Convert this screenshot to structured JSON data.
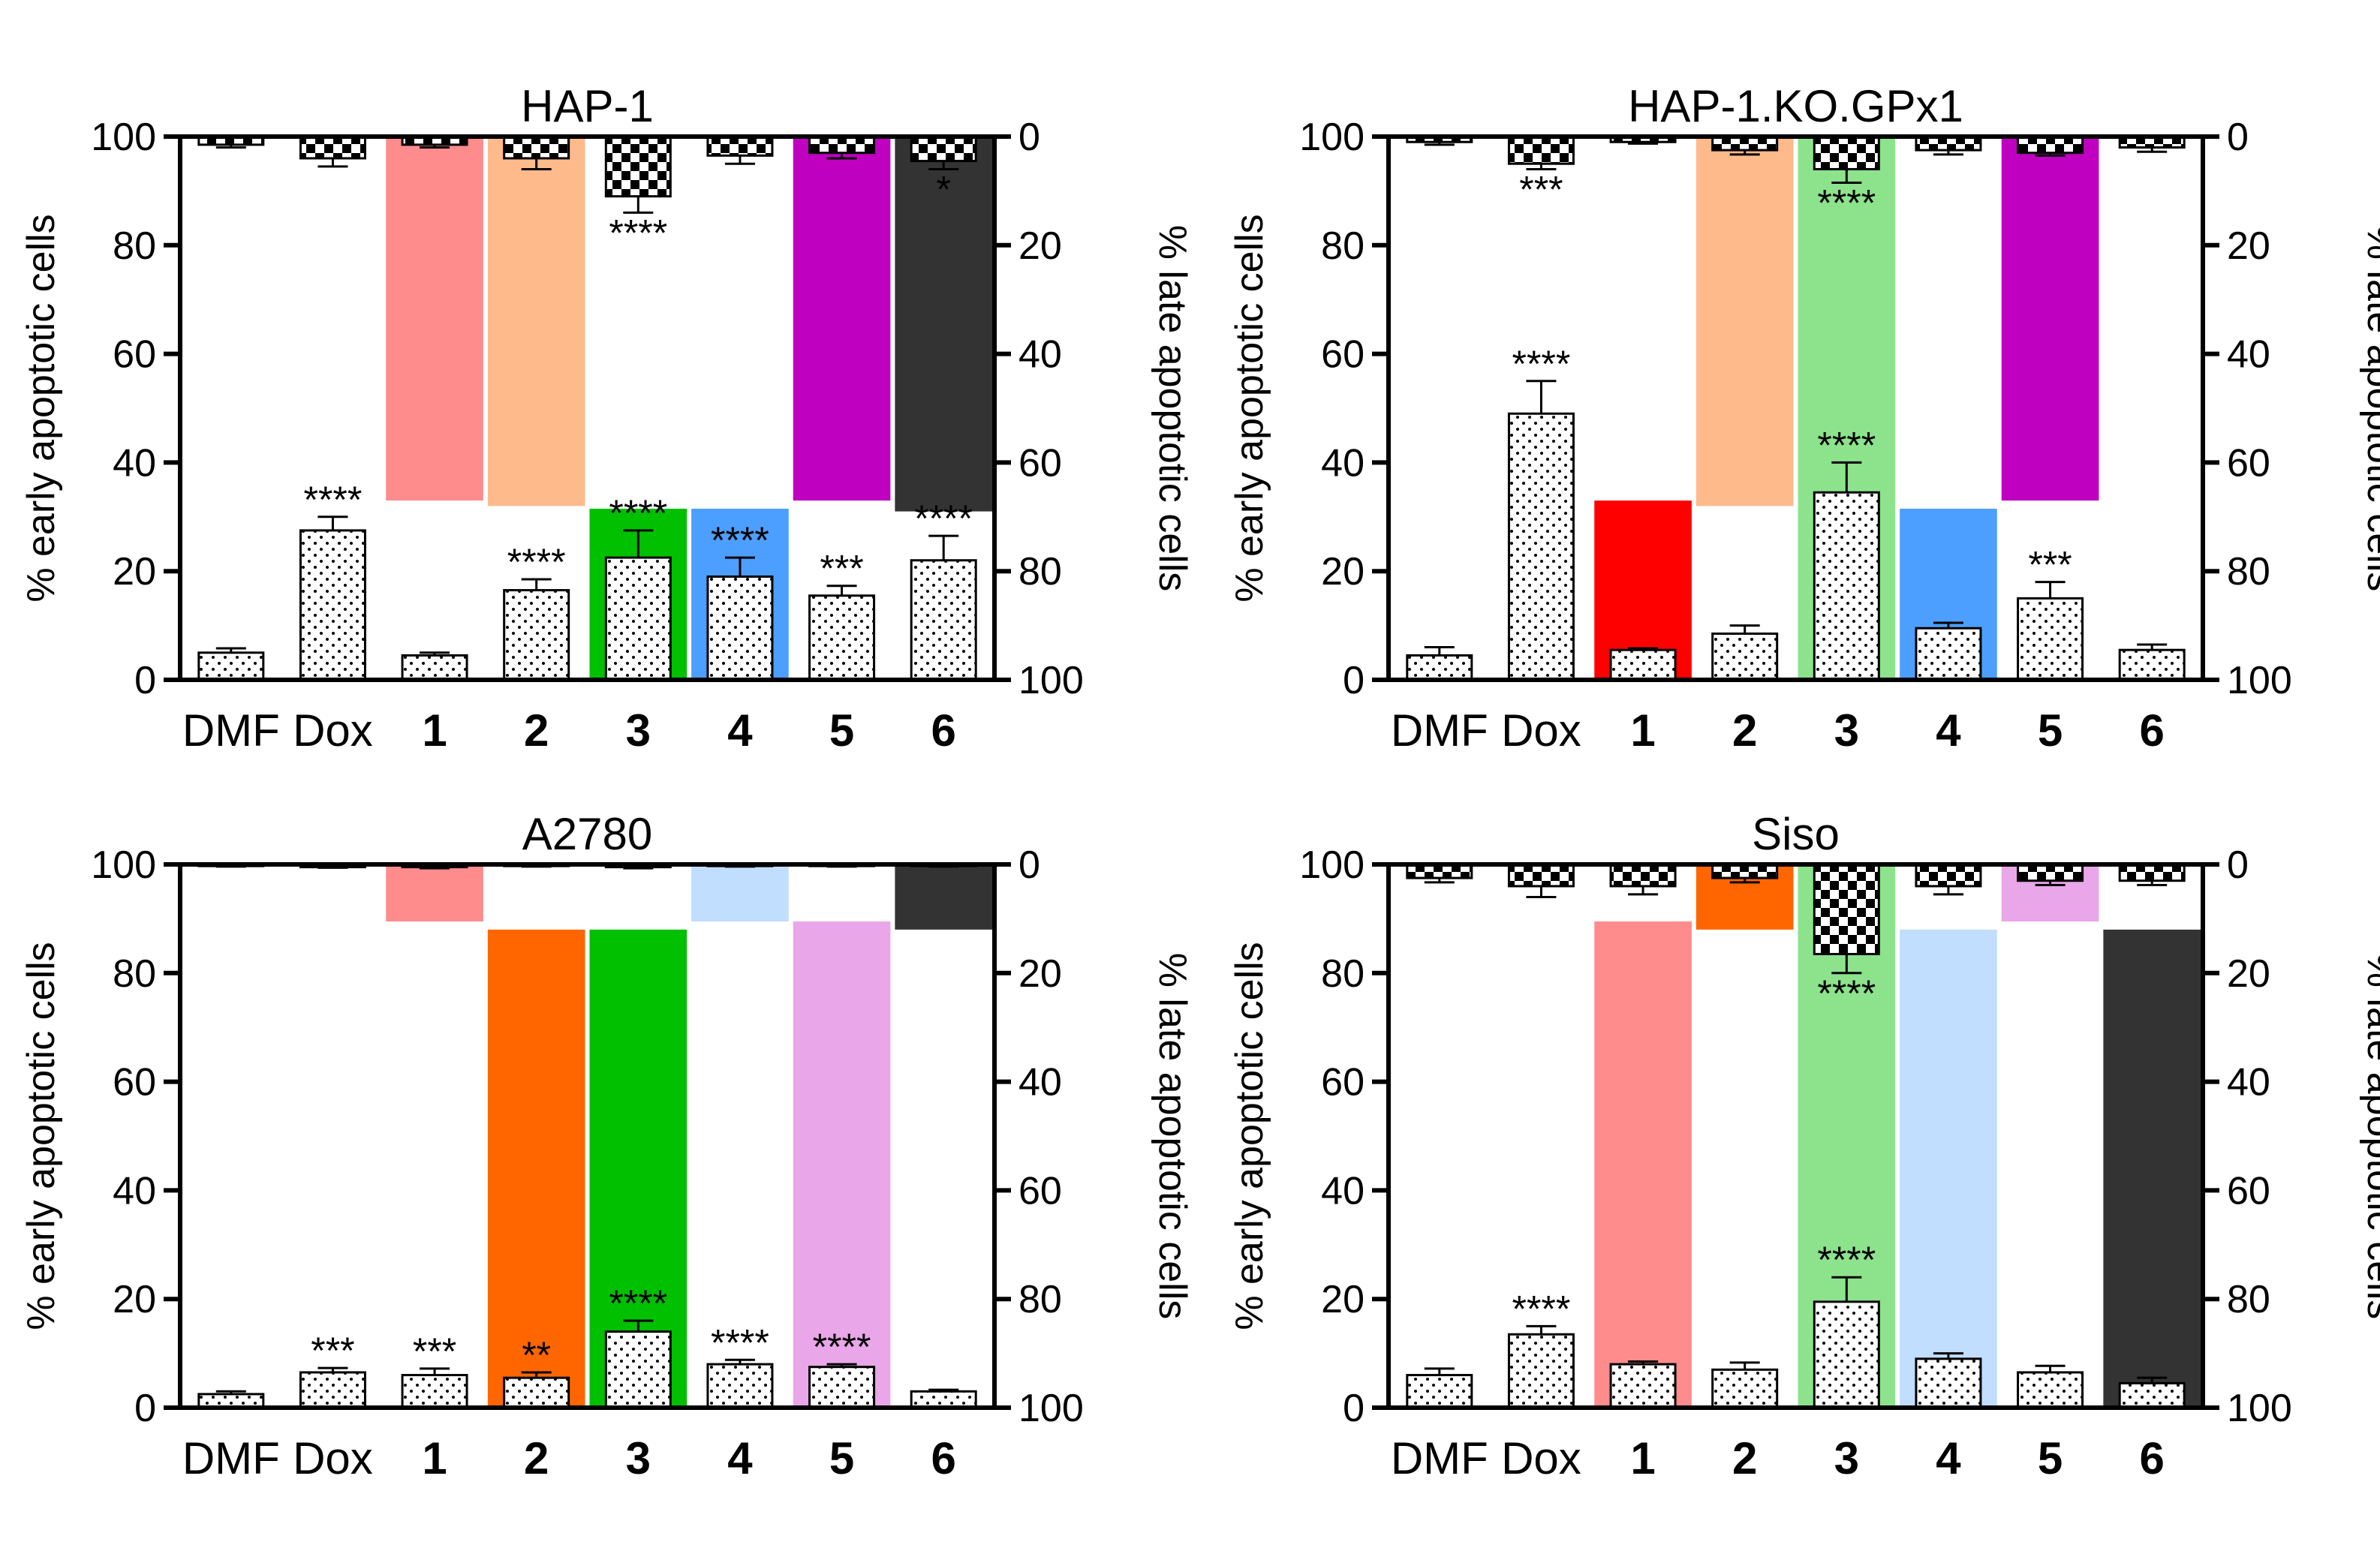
{
  "categories": [
    "DMF",
    "Dox",
    "1",
    "2",
    "3",
    "4",
    "5",
    "6"
  ],
  "compound_colors": {
    "1": "#ff0000",
    "2": "#ff6600",
    "3": "#00c000",
    "4": "#4d9fff",
    "5": "#c000c0",
    "6": "#333333"
  },
  "chart_data": [
    {
      "type": "bar",
      "title": "HAP-1",
      "ylabel_left": "% early apoptotic cells",
      "ylabel_right": "% late apoptotic cells",
      "ylim_left": [
        0,
        100
      ],
      "ylim_right": [
        0,
        100
      ],
      "left_ticks": [
        "0",
        "20",
        "40",
        "60",
        "80",
        "100"
      ],
      "right_ticks": [
        "100",
        "80",
        "60",
        "40",
        "20",
        "0"
      ],
      "early": [
        5,
        27.5,
        4.5,
        16.5,
        22.5,
        19,
        15.5,
        22
      ],
      "early_err": [
        0.8,
        2.5,
        0.5,
        2,
        5,
        3.5,
        1.8,
        4.5
      ],
      "early_sig": [
        "",
        "****",
        "",
        "****",
        "****",
        "****",
        "***",
        "****"
      ],
      "late": [
        1.5,
        4,
        1.5,
        4,
        11,
        3.5,
        3,
        4.5
      ],
      "late_err": [
        0.5,
        1.5,
        0.5,
        2,
        3,
        1.5,
        1,
        1.5
      ],
      "late_sig": [
        "",
        "",
        "",
        "",
        "****",
        "",
        "",
        "*"
      ],
      "highlights": [
        {
          "cat": "1",
          "from": 33,
          "to": 100,
          "alpha": 0.45
        },
        {
          "cat": "2",
          "from": 32,
          "to": 100,
          "alpha": 0.45
        },
        {
          "cat": "3",
          "from": 0,
          "to": 31.5,
          "alpha": 1
        },
        {
          "cat": "4",
          "from": 0,
          "to": 31.5,
          "alpha": 1
        },
        {
          "cat": "5",
          "from": 33,
          "to": 100,
          "alpha": 1
        },
        {
          "cat": "6",
          "from": 31,
          "to": 100,
          "alpha": 1
        }
      ]
    },
    {
      "type": "bar",
      "title": "HAP-1.KO.GPx1",
      "ylabel_left": "% early apoptotic cells",
      "ylabel_right": "% late apoptotic cells",
      "ylim_left": [
        0,
        100
      ],
      "ylim_right": [
        0,
        100
      ],
      "left_ticks": [
        "0",
        "20",
        "40",
        "60",
        "80",
        "100"
      ],
      "right_ticks": [
        "100",
        "80",
        "60",
        "40",
        "20",
        "0"
      ],
      "early": [
        4.5,
        49,
        5.5,
        8.5,
        34.5,
        9.5,
        15,
        5.5
      ],
      "early_err": [
        1.5,
        6,
        0.3,
        1.5,
        5.5,
        1,
        3,
        1
      ],
      "early_sig": [
        "",
        "****",
        "",
        "",
        "****",
        "",
        "***",
        ""
      ],
      "late": [
        1,
        5,
        1,
        2.5,
        6,
        2.5,
        3,
        2
      ],
      "late_err": [
        0.5,
        1,
        0.3,
        0.8,
        2.5,
        0.8,
        0.5,
        0.8
      ],
      "late_sig": [
        "",
        "***",
        "",
        "",
        "****",
        "",
        "",
        ""
      ],
      "highlights": [
        {
          "cat": "1",
          "from": 0,
          "to": 33,
          "alpha": 1
        },
        {
          "cat": "2",
          "from": 32,
          "to": 100,
          "alpha": 0.45
        },
        {
          "cat": "3",
          "from": 0,
          "to": 100,
          "alpha": 0.45
        },
        {
          "cat": "4",
          "from": 0,
          "to": 31.5,
          "alpha": 1
        },
        {
          "cat": "5",
          "from": 33,
          "to": 100,
          "alpha": 1
        }
      ]
    },
    {
      "type": "bar",
      "title": "A2780",
      "ylabel_left": "% early apoptotic cells",
      "ylabel_right": "% late apoptotic cells",
      "ylim_left": [
        0,
        100
      ],
      "ylim_right": [
        0,
        100
      ],
      "left_ticks": [
        "0",
        "20",
        "40",
        "60",
        "80",
        "100"
      ],
      "right_ticks": [
        "100",
        "80",
        "60",
        "40",
        "20",
        "0"
      ],
      "early": [
        2.5,
        6.5,
        6,
        5.5,
        14,
        8,
        7.5,
        3
      ],
      "early_err": [
        0.5,
        0.8,
        1.2,
        1,
        2,
        0.8,
        0.5,
        0.3
      ],
      "early_sig": [
        "",
        "***",
        "***",
        "**",
        "****",
        "****",
        "****",
        ""
      ],
      "late": [
        0.3,
        0.5,
        0.5,
        0.3,
        0.5,
        0.3,
        0.3,
        0.3
      ],
      "late_err": [
        0.1,
        0.1,
        0.2,
        0.1,
        0.2,
        0.1,
        0.1,
        0.1
      ],
      "late_sig": [
        "",
        "",
        "",
        "",
        "",
        "",
        "",
        ""
      ],
      "highlights": [
        {
          "cat": "1",
          "from": 89.5,
          "to": 100,
          "alpha": 0.45
        },
        {
          "cat": "2",
          "from": 0,
          "to": 88,
          "alpha": 1
        },
        {
          "cat": "3",
          "from": 0,
          "to": 88,
          "alpha": 1
        },
        {
          "cat": "4",
          "from": 89.5,
          "to": 100,
          "alpha": 0.35
        },
        {
          "cat": "5",
          "from": 0,
          "to": 89.5,
          "alpha": 0.35
        },
        {
          "cat": "6",
          "from": 88,
          "to": 100,
          "alpha": 1
        }
      ]
    },
    {
      "type": "bar",
      "title": "Siso",
      "ylabel_left": "% early apoptotic cells",
      "ylabel_right": "% late apoptotic cells",
      "ylim_left": [
        0,
        100
      ],
      "ylim_right": [
        0,
        100
      ],
      "left_ticks": [
        "0",
        "20",
        "40",
        "60",
        "80",
        "100"
      ],
      "right_ticks": [
        "100",
        "80",
        "60",
        "40",
        "20",
        "0"
      ],
      "early": [
        6,
        13.5,
        8,
        7,
        19.5,
        9,
        6.5,
        4.5
      ],
      "early_err": [
        1.2,
        1.5,
        0.5,
        1.3,
        4.5,
        1,
        1.2,
        1
      ],
      "early_sig": [
        "",
        "****",
        "",
        "",
        "****",
        "",
        "",
        ""
      ],
      "late": [
        2.5,
        4,
        4,
        2.5,
        16.5,
        4,
        3,
        3
      ],
      "late_err": [
        0.8,
        2,
        1.5,
        0.8,
        3.5,
        1.5,
        0.8,
        0.8
      ],
      "late_sig": [
        "",
        "",
        "",
        "",
        "****",
        "",
        "",
        ""
      ],
      "highlights": [
        {
          "cat": "1",
          "from": 0,
          "to": 89.5,
          "alpha": 0.45
        },
        {
          "cat": "2",
          "from": 88,
          "to": 100,
          "alpha": 1
        },
        {
          "cat": "3",
          "from": 0,
          "to": 100,
          "alpha": 0.45
        },
        {
          "cat": "4",
          "from": 0,
          "to": 88,
          "alpha": 0.35
        },
        {
          "cat": "5",
          "from": 89.5,
          "to": 100,
          "alpha": 0.35
        },
        {
          "cat": "6",
          "from": 0,
          "to": 88,
          "alpha": 1
        }
      ]
    }
  ]
}
